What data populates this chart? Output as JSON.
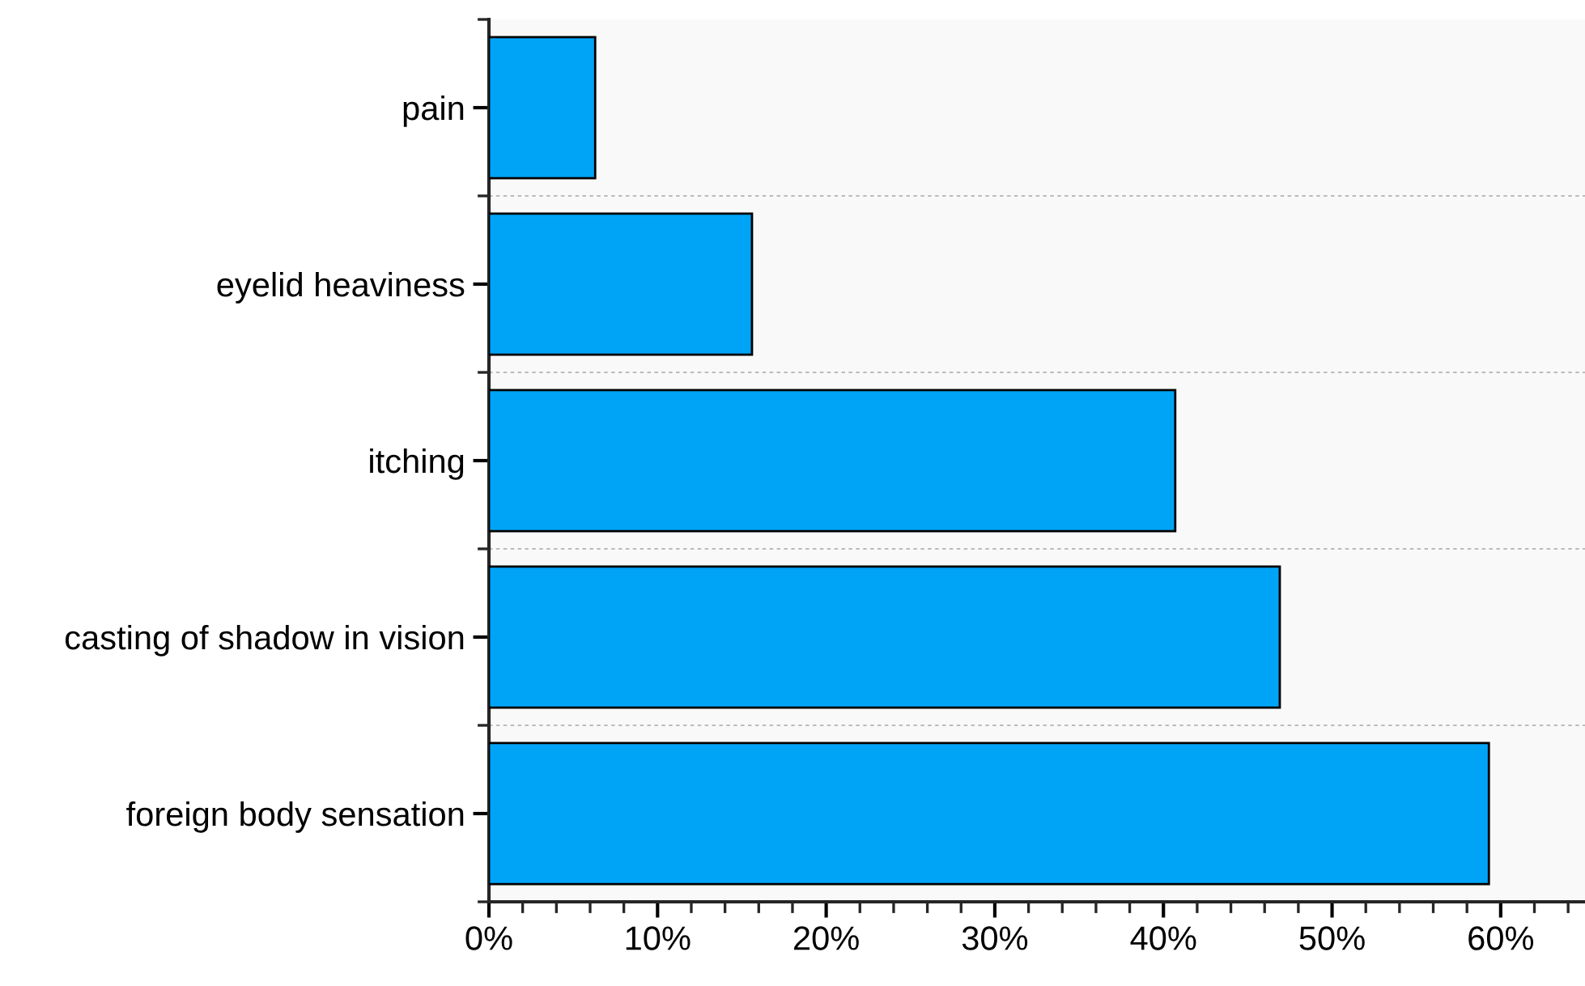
{
  "chart_data": {
    "type": "bar",
    "orientation": "horizontal",
    "categories": [
      "pain",
      "eyelid heaviness",
      "itching",
      "casting of shadow in vision",
      "foreign body sensation"
    ],
    "values": [
      6.3,
      15.6,
      40.7,
      46.9,
      59.3
    ],
    "color": "#00a4f7",
    "xlim": [
      0,
      65
    ],
    "xticks": [
      {
        "value": 0,
        "label": "0%"
      },
      {
        "value": 10,
        "label": "10%"
      },
      {
        "value": 20,
        "label": "20%"
      },
      {
        "value": 30,
        "label": "30%"
      },
      {
        "value": 40,
        "label": "40%"
      },
      {
        "value": 50,
        "label": "50%"
      },
      {
        "value": 60,
        "label": "60%"
      }
    ],
    "grid": "y"
  }
}
